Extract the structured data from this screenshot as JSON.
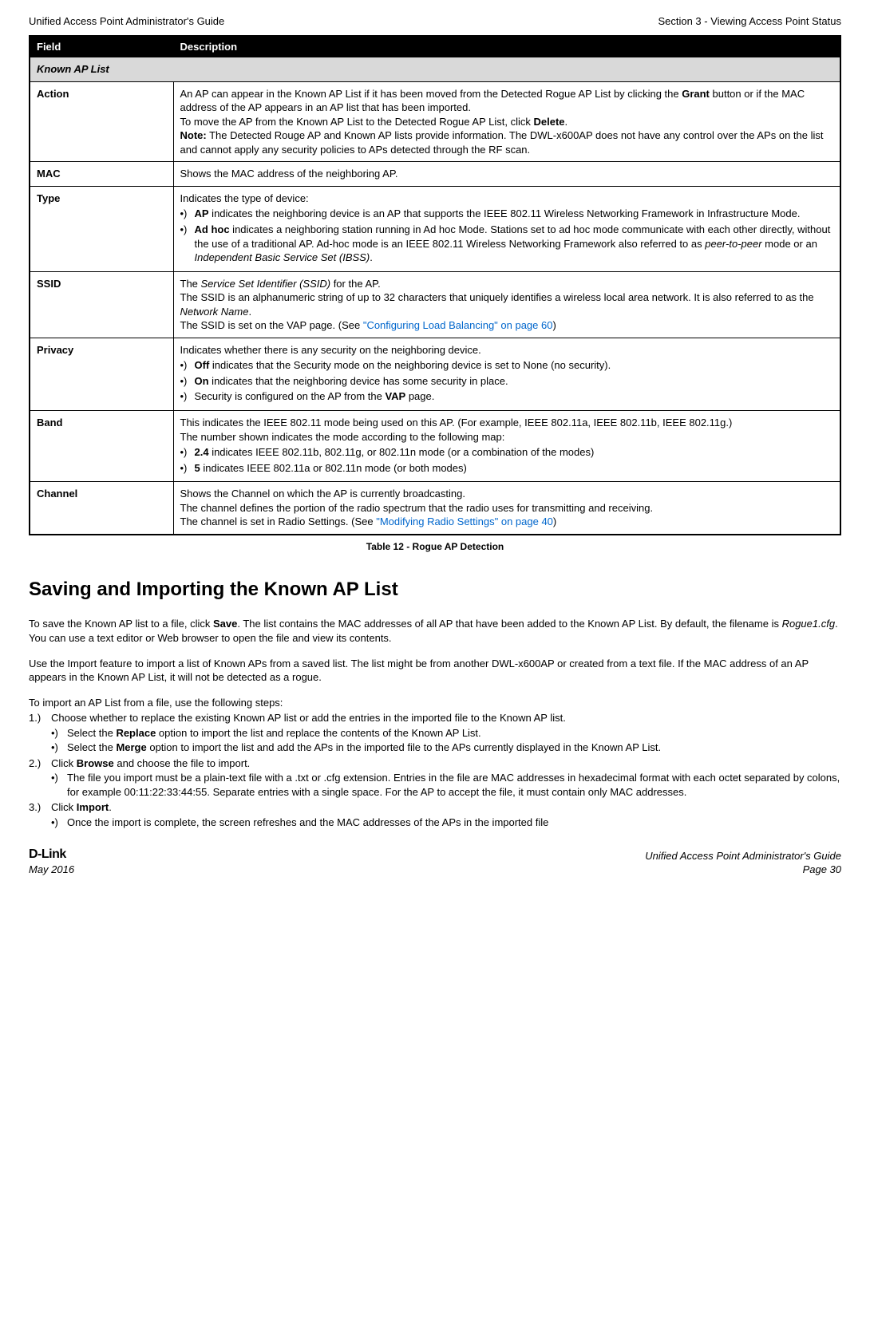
{
  "header": {
    "left": "Unified Access Point Administrator's Guide",
    "right": "Section 3 - Viewing Access Point Status"
  },
  "table": {
    "col_field": "Field",
    "col_desc": "Description",
    "section_header": "Known AP List",
    "action": {
      "label": "Action",
      "p1a": "An AP can appear in the Known AP List if it has been moved from the Detected Rogue AP List by clicking the ",
      "grant": "Grant",
      "p1b": " button or if the MAC address of the AP appears in an AP list that has been imported.",
      "p2a": "To move the AP from the Known AP List to the Detected Rogue AP List, click ",
      "delete": "Delete",
      "p2b": ".",
      "note_label": "Note:",
      "note_text": " The Detected Rouge AP and Known AP lists provide information. The DWL-x600AP does not have any control over the APs on the list and cannot apply any security policies to APs detected through the RF scan."
    },
    "mac": {
      "label": "MAC",
      "text": "Shows the MAC address of the neighboring AP."
    },
    "type": {
      "label": "Type",
      "intro": "Indicates the type of device:",
      "b1_strong": "AP",
      "b1_rest": " indicates the neighboring device is an AP that supports the IEEE 802.11 Wireless Networking Framework in Infrastructure Mode.",
      "b2_strong": "Ad hoc",
      "b2_rest_a": " indicates a neighboring station running in Ad hoc Mode. Stations set to ad hoc mode communicate with each other directly, without the use of a traditional AP. Ad-hoc mode is an IEEE 802.11 Wireless Networking Framework also referred to as ",
      "b2_em1": "peer-to-peer",
      "b2_mid": " mode or an ",
      "b2_em2": "Independent Basic Service Set (IBSS)",
      "b2_end": "."
    },
    "ssid": {
      "label": "SSID",
      "l1a": "The ",
      "l1_em": "Service Set Identifier (SSID)",
      "l1b": " for the AP.",
      "l2a": "The SSID is an alphanumeric string of up to 32 characters that uniquely identifies a wireless local area network. It is also referred to as the ",
      "l2_em": "Network Name",
      "l2b": ".",
      "l3a": "The SSID is set on the VAP page. (See ",
      "l3_link": "\"Configuring Load Balancing\" on page 60",
      "l3b": ")"
    },
    "privacy": {
      "label": "Privacy",
      "intro": "Indicates whether there is any security on the neighboring device.",
      "b1_strong": "Off",
      "b1_rest": " indicates that the Security mode on the neighboring device is set to None (no security).",
      "b2_strong": "On",
      "b2_rest": " indicates that the neighboring device has some security in place.",
      "b3_a": "Security is configured on the AP from the ",
      "b3_strong": "VAP",
      "b3_b": " page."
    },
    "band": {
      "label": "Band",
      "p1": "This indicates the IEEE 802.11 mode being used on this AP. (For example, IEEE 802.11a, IEEE 802.11b, IEEE 802.11g.)",
      "p2": "The number shown indicates the mode according to the following map:",
      "b1_strong": "2.4",
      "b1_rest": " indicates IEEE 802.11b, 802.11g, or 802.11n mode (or a combination of the modes)",
      "b2_strong": "5",
      "b2_rest": " indicates IEEE 802.11a or 802.11n mode (or both modes)"
    },
    "channel": {
      "label": "Channel",
      "l1": "Shows the Channel on which the AP is currently broadcasting.",
      "l2": "The channel defines the portion of the radio spectrum that the radio uses for transmitting and receiving.",
      "l3a": "The channel is set in Radio Settings. (See ",
      "l3_link": "\"Modifying Radio Settings\" on page 40",
      "l3b": ")"
    }
  },
  "caption": "Table 12 - Rogue AP Detection",
  "section_title": "Saving and Importing the Known AP List",
  "para1_a": "To save the Known AP list to a file, click ",
  "para1_save": "Save",
  "para1_b": ". The list contains the MAC addresses of all AP that have been added to the Known AP List. By default, the filename is ",
  "para1_em": "Rogue1.cfg",
  "para1_c": ". You can use a text editor or Web browser to open the file and view its contents.",
  "para2": "Use the Import feature to import a list of Known APs from a saved list. The list might be from another DWL-x600AP or created from a text file. If the MAC address of an AP appears in the Known AP List, it will not be detected as a rogue.",
  "steps_intro": "To import an AP List from a file, use the following steps:",
  "step1": {
    "num": "1.)",
    "text": "Choose whether to replace the existing Known AP list or add the entries in the imported file to the Known AP list.",
    "sub1_a": "Select the ",
    "sub1_strong": "Replace",
    "sub1_b": " option to import the list and replace the contents of the Known AP List.",
    "sub2_a": "Select the ",
    "sub2_strong": "Merge",
    "sub2_b": " option to import the list and add the APs in the imported file to the APs currently displayed in the Known AP List."
  },
  "step2": {
    "num": "2.)",
    "text_a": "Click ",
    "text_strong": "Browse",
    "text_b": " and choose the file to import.",
    "sub1": "The file you import must be a plain-text file with a .txt or .cfg extension. Entries in the file are MAC addresses in hexadecimal format with each octet separated by colons, for example 00:11:22:33:44:55. Separate entries with a single space. For the AP to accept the file, it must contain only MAC addresses."
  },
  "step3": {
    "num": "3.)",
    "text_a": "Click ",
    "text_strong": "Import",
    "text_b": ".",
    "sub1": "Once the import is complete, the screen refreshes and the MAC addresses of the APs in the imported file"
  },
  "footer": {
    "brand": "D-Link",
    "date": "May 2016",
    "right_title": "Unified Access Point Administrator's Guide",
    "right_page": "Page 30"
  }
}
